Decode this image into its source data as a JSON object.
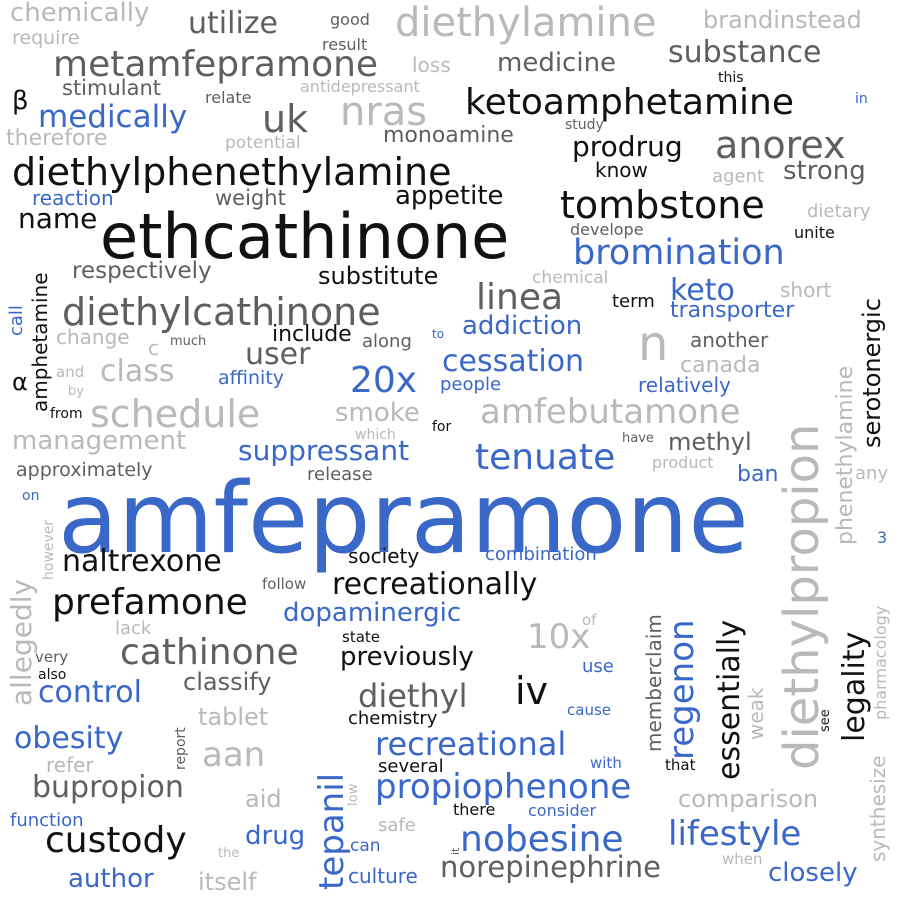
{
  "colors": {
    "black": "#111111",
    "dark_gray": "#5f5f5f",
    "light_gray": "#b9b9b9",
    "blue": "#3a68c8"
  },
  "words": [
    {
      "text": "amfepramone",
      "color": "blue"
    },
    {
      "text": "ethcathinone",
      "color": "black"
    },
    {
      "text": "diethylpropion",
      "color": "light_gray"
    },
    {
      "text": "diethylphenethylamine",
      "color": "black"
    },
    {
      "text": "diethylcathinone",
      "color": "dark_gray"
    },
    {
      "text": "diethylamine",
      "color": "light_gray"
    },
    {
      "text": "metamfepramone",
      "color": "dark_gray"
    },
    {
      "text": "ketoamphetamine",
      "color": "black"
    },
    {
      "text": "tombstone",
      "color": "black"
    },
    {
      "text": "bromination",
      "color": "blue"
    },
    {
      "text": "anorex",
      "color": "dark_gray"
    },
    {
      "text": "cathinone",
      "color": "dark_gray"
    },
    {
      "text": "tenuate",
      "color": "blue"
    },
    {
      "text": "amfebutamone",
      "color": "light_gray"
    },
    {
      "text": "schedule",
      "color": "light_gray"
    },
    {
      "text": "prefamone",
      "color": "black"
    },
    {
      "text": "naltrexone",
      "color": "black"
    },
    {
      "text": "recreationally",
      "color": "black"
    },
    {
      "text": "nobesine",
      "color": "blue"
    },
    {
      "text": "lifestyle",
      "color": "blue"
    },
    {
      "text": "propiophenone",
      "color": "blue"
    },
    {
      "text": "recreational",
      "color": "blue"
    },
    {
      "text": "custody",
      "color": "black"
    },
    {
      "text": "tepanil",
      "color": "blue"
    },
    {
      "text": "regenon",
      "color": "blue"
    },
    {
      "text": "essentially",
      "color": "black"
    },
    {
      "text": "legality",
      "color": "black"
    },
    {
      "text": "serotonergic",
      "color": "black"
    },
    {
      "text": "phenethylamine",
      "color": "light_gray"
    },
    {
      "text": "allegedly",
      "color": "light_gray"
    },
    {
      "text": "amphetamine",
      "color": "black"
    },
    {
      "text": "norepinephrine",
      "color": "dark_gray"
    },
    {
      "text": "bupropion",
      "color": "dark_gray"
    },
    {
      "text": "suppressant",
      "color": "blue"
    },
    {
      "text": "diethyl",
      "color": "dark_gray"
    },
    {
      "text": "substance",
      "color": "dark_gray"
    },
    {
      "text": "medically",
      "color": "blue"
    },
    {
      "text": "utilize",
      "color": "dark_gray"
    },
    {
      "text": "chemically",
      "color": "light_gray"
    },
    {
      "text": "medicine",
      "color": "dark_gray"
    },
    {
      "text": "prodrug",
      "color": "black"
    },
    {
      "text": "appetite",
      "color": "black"
    },
    {
      "text": "linea",
      "color": "dark_gray"
    },
    {
      "text": "cessation",
      "color": "blue"
    },
    {
      "text": "addiction",
      "color": "blue"
    },
    {
      "text": "keto",
      "color": "blue"
    },
    {
      "text": "transporter",
      "color": "blue"
    },
    {
      "text": "class",
      "color": "light_gray"
    },
    {
      "text": "control",
      "color": "blue"
    },
    {
      "text": "obesity",
      "color": "blue"
    },
    {
      "text": "dopaminergic",
      "color": "blue"
    },
    {
      "text": "management",
      "color": "light_gray"
    },
    {
      "text": "previously",
      "color": "black"
    },
    {
      "text": "classify",
      "color": "dark_gray"
    },
    {
      "text": "nras",
      "color": "light_gray"
    },
    {
      "text": "uk",
      "color": "dark_gray"
    },
    {
      "text": "n",
      "color": "light_gray"
    },
    {
      "text": "20x",
      "color": "blue"
    },
    {
      "text": "10x",
      "color": "light_gray"
    },
    {
      "text": "iv",
      "color": "black"
    },
    {
      "text": "aan",
      "color": "light_gray"
    },
    {
      "text": "user",
      "color": "dark_gray"
    },
    {
      "text": "name",
      "color": "black"
    },
    {
      "text": "respectively",
      "color": "dark_gray"
    },
    {
      "text": "substitute",
      "color": "black"
    },
    {
      "text": "include",
      "color": "black"
    },
    {
      "text": "smoke",
      "color": "light_gray"
    },
    {
      "text": "strong",
      "color": "dark_gray"
    },
    {
      "text": "know",
      "color": "black"
    },
    {
      "text": "monoamine",
      "color": "dark_gray"
    },
    {
      "text": "weight",
      "color": "dark_gray"
    },
    {
      "text": "reaction",
      "color": "blue"
    },
    {
      "text": "stimulant",
      "color": "dark_gray"
    },
    {
      "text": "therefore",
      "color": "light_gray"
    },
    {
      "text": "potential",
      "color": "light_gray"
    },
    {
      "text": "antidepressant",
      "color": "light_gray"
    },
    {
      "text": "relate",
      "color": "dark_gray"
    },
    {
      "text": "loss",
      "color": "light_gray"
    },
    {
      "text": "result",
      "color": "dark_gray"
    },
    {
      "text": "good",
      "color": "dark_gray"
    },
    {
      "text": "require",
      "color": "light_gray"
    },
    {
      "text": "brandinstead",
      "color": "light_gray"
    },
    {
      "text": "this",
      "color": "black"
    },
    {
      "text": "in",
      "color": "blue"
    },
    {
      "text": "study",
      "color": "dark_gray"
    },
    {
      "text": "agent",
      "color": "light_gray"
    },
    {
      "text": "dietary",
      "color": "light_gray"
    },
    {
      "text": "unite",
      "color": "black"
    },
    {
      "text": "develope",
      "color": "dark_gray"
    },
    {
      "text": "chemical",
      "color": "light_gray"
    },
    {
      "text": "short",
      "color": "light_gray"
    },
    {
      "text": "term",
      "color": "black"
    },
    {
      "text": "another",
      "color": "dark_gray"
    },
    {
      "text": "canada",
      "color": "light_gray"
    },
    {
      "text": "relatively",
      "color": "blue"
    },
    {
      "text": "people",
      "color": "blue"
    },
    {
      "text": "affinity",
      "color": "blue"
    },
    {
      "text": "methyl",
      "color": "dark_gray"
    },
    {
      "text": "ban",
      "color": "blue"
    },
    {
      "text": "any",
      "color": "light_gray"
    },
    {
      "text": "product",
      "color": "light_gray"
    },
    {
      "text": "have",
      "color": "dark_gray"
    },
    {
      "text": "for",
      "color": "black"
    },
    {
      "text": "which",
      "color": "light_gray"
    },
    {
      "text": "release",
      "color": "dark_gray"
    },
    {
      "text": "approximately",
      "color": "dark_gray"
    },
    {
      "text": "on",
      "color": "blue"
    },
    {
      "text": "society",
      "color": "black"
    },
    {
      "text": "combination",
      "color": "blue"
    },
    {
      "text": "follow",
      "color": "dark_gray"
    },
    {
      "text": "state",
      "color": "black"
    },
    {
      "text": "lack",
      "color": "light_gray"
    },
    {
      "text": "very",
      "color": "dark_gray"
    },
    {
      "text": "also",
      "color": "black"
    },
    {
      "text": "of",
      "color": "light_gray"
    },
    {
      "text": "use",
      "color": "blue"
    },
    {
      "text": "tablet",
      "color": "light_gray"
    },
    {
      "text": "chemistry",
      "color": "black"
    },
    {
      "text": "cause",
      "color": "blue"
    },
    {
      "text": "refer",
      "color": "light_gray"
    },
    {
      "text": "several",
      "color": "black"
    },
    {
      "text": "with",
      "color": "blue"
    },
    {
      "text": "that",
      "color": "black"
    },
    {
      "text": "aid",
      "color": "light_gray"
    },
    {
      "text": "comparison",
      "color": "light_gray"
    },
    {
      "text": "there",
      "color": "black"
    },
    {
      "text": "consider",
      "color": "blue"
    },
    {
      "text": "function",
      "color": "blue"
    },
    {
      "text": "drug",
      "color": "blue"
    },
    {
      "text": "safe",
      "color": "light_gray"
    },
    {
      "text": "can",
      "color": "blue"
    },
    {
      "text": "the",
      "color": "light_gray"
    },
    {
      "text": "author",
      "color": "blue"
    },
    {
      "text": "itself",
      "color": "light_gray"
    },
    {
      "text": "culture",
      "color": "blue"
    },
    {
      "text": "when",
      "color": "light_gray"
    },
    {
      "text": "closely",
      "color": "blue"
    },
    {
      "text": "memberclaim",
      "color": "dark_gray"
    },
    {
      "text": "weak",
      "color": "light_gray"
    },
    {
      "text": "synthesize",
      "color": "light_gray"
    },
    {
      "text": "pharmacology",
      "color": "light_gray"
    },
    {
      "text": "see",
      "color": "black"
    },
    {
      "text": "report",
      "color": "dark_gray"
    },
    {
      "text": "low",
      "color": "light_gray"
    },
    {
      "text": "however",
      "color": "light_gray"
    },
    {
      "text": "call",
      "color": "blue"
    },
    {
      "text": "change",
      "color": "light_gray"
    },
    {
      "text": "c",
      "color": "light_gray"
    },
    {
      "text": "much",
      "color": "dark_gray"
    },
    {
      "text": "along",
      "color": "dark_gray"
    },
    {
      "text": "to",
      "color": "blue"
    },
    {
      "text": "by",
      "color": "light_gray"
    },
    {
      "text": "from",
      "color": "black"
    },
    {
      "text": "and",
      "color": "light_gray"
    },
    {
      "text": "β",
      "color": "black"
    },
    {
      "text": "α",
      "color": "black"
    },
    {
      "text": "3",
      "color": "blue"
    },
    {
      "text": "it",
      "color": "dark_gray"
    }
  ]
}
